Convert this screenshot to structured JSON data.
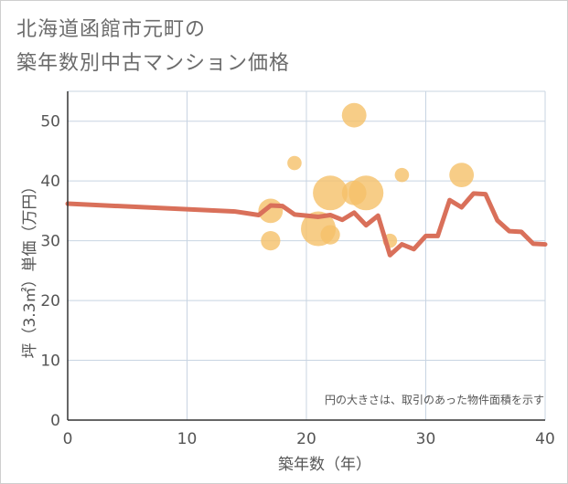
{
  "chart_data": {
    "type": "scatter+line",
    "title": [
      "北海道函館市元町の",
      "築年数別中古マンション価格"
    ],
    "xlabel": "築年数（年）",
    "ylabel": "坪（3.3㎡）単価（万円）",
    "xlim": [
      0,
      40
    ],
    "ylim": [
      0,
      55
    ],
    "xticks": [
      0,
      10,
      20,
      30,
      40
    ],
    "yticks": [
      0,
      10,
      20,
      30,
      40,
      50
    ],
    "note": "円の大きさは、取引のあった物件面積を示す",
    "colors": {
      "line": "#d9705a",
      "bubble": "#f5c169",
      "grid": "#c8d4e2",
      "axis": "#333333"
    },
    "scatter": [
      {
        "x": 17,
        "y": 35,
        "size": 3
      },
      {
        "x": 17,
        "y": 30,
        "size": 2
      },
      {
        "x": 19,
        "y": 43,
        "size": 1
      },
      {
        "x": 21,
        "y": 32,
        "size": 5
      },
      {
        "x": 22,
        "y": 38,
        "size": 5
      },
      {
        "x": 22,
        "y": 31,
        "size": 2
      },
      {
        "x": 24,
        "y": 51,
        "size": 3
      },
      {
        "x": 24,
        "y": 38,
        "size": 3
      },
      {
        "x": 25,
        "y": 38,
        "size": 5
      },
      {
        "x": 27,
        "y": 30,
        "size": 1
      },
      {
        "x": 28,
        "y": 41,
        "size": 1
      },
      {
        "x": 33,
        "y": 41,
        "size": 3
      }
    ],
    "line": {
      "x": [
        0,
        14,
        15,
        16,
        17,
        18,
        19,
        20,
        21,
        22,
        23,
        24,
        25,
        26,
        27,
        28,
        29,
        30,
        31,
        32,
        33,
        34,
        35,
        36,
        37,
        38,
        39,
        40
      ],
      "y": [
        36.2,
        34.9,
        34.6,
        34.3,
        35.9,
        35.8,
        34.4,
        34.2,
        34.0,
        34.3,
        33.5,
        34.7,
        32.6,
        34.2,
        27.6,
        29.4,
        28.6,
        30.8,
        30.8,
        36.8,
        35.6,
        37.9,
        37.8,
        33.4,
        31.6,
        31.5,
        29.5,
        29.4
      ]
    }
  }
}
